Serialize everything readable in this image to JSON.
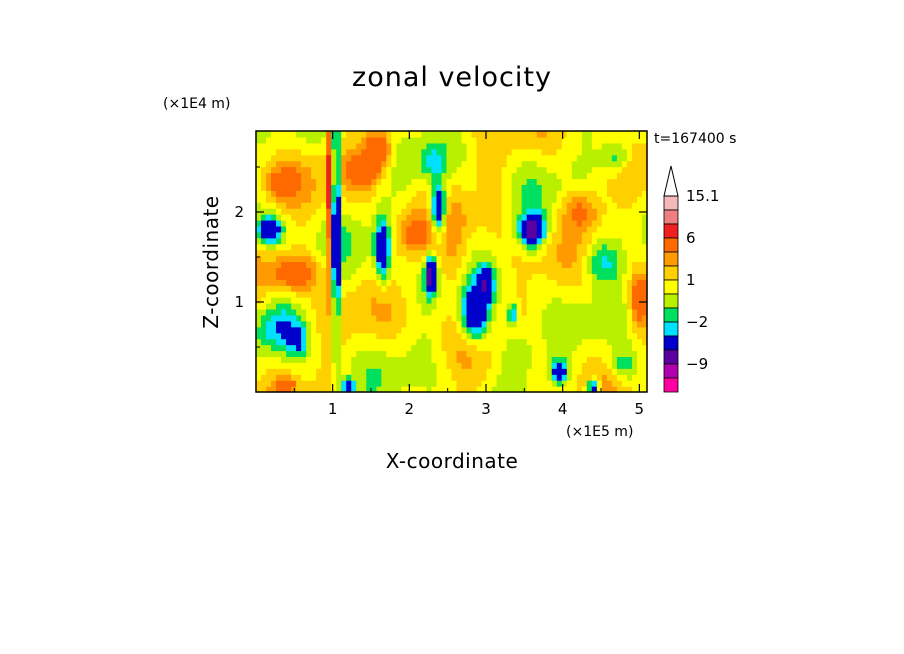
{
  "chart_data": {
    "type": "heatmap",
    "title": "zonal velocity",
    "xlabel": "X-coordinate",
    "ylabel": "Z-coordinate",
    "x_scale_note": "(×1E5 m)",
    "y_scale_note": "(×1E4 m)",
    "time_label": "t=167400 s",
    "xlim": [
      0,
      5.1
    ],
    "ylim": [
      0,
      2.9
    ],
    "x_ticks": [
      1,
      2,
      3,
      4,
      5
    ],
    "y_ticks": [
      1,
      2
    ],
    "x_tick_labels": [
      "1",
      "2",
      "3",
      "4",
      "5"
    ],
    "y_tick_labels": [
      "1",
      "2"
    ],
    "colorbar": {
      "max_label": "15.1",
      "labels": [
        "15.1",
        "6",
        "1",
        "−2",
        "−9"
      ],
      "levels": [
        {
          "lo": 12,
          "hi": 15.1,
          "color": "#f5b8b8"
        },
        {
          "lo": 9,
          "hi": 12,
          "color": "#f08080"
        },
        {
          "lo": 6,
          "hi": 9,
          "color": "#ee2020"
        },
        {
          "lo": 3,
          "hi": 6,
          "color": "#ff6a00"
        },
        {
          "lo": 2,
          "hi": 3,
          "color": "#ff9a00"
        },
        {
          "lo": 1,
          "hi": 2,
          "color": "#ffd000"
        },
        {
          "lo": 0,
          "hi": 1,
          "color": "#ffff00"
        },
        {
          "lo": -1,
          "hi": 0,
          "color": "#b8f000"
        },
        {
          "lo": -2,
          "hi": -1,
          "color": "#00e060"
        },
        {
          "lo": -3,
          "hi": -2,
          "color": "#00e0ff"
        },
        {
          "lo": -6,
          "hi": -3,
          "color": "#0000cc"
        },
        {
          "lo": -9,
          "hi": -6,
          "color": "#5a00a0"
        },
        {
          "lo": -12,
          "hi": -9,
          "color": "#b000b0"
        },
        {
          "lo": -15,
          "hi": -12,
          "color": "#ff00a0"
        }
      ]
    },
    "grid": false
  }
}
